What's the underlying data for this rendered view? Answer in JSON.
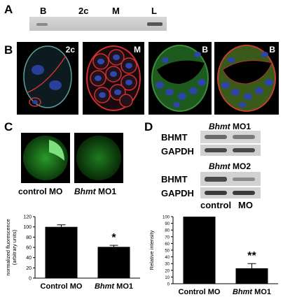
{
  "panelA": {
    "label": "A",
    "lanes": [
      "B",
      "2c",
      "M",
      "L"
    ]
  },
  "panelB": {
    "label": "B",
    "images": [
      {
        "tag": "2c",
        "stain": "red-membrane-blue-nuclei"
      },
      {
        "tag": "M",
        "stain": "red-membrane-blue-nuclei"
      },
      {
        "tag": "B",
        "stain": "green-cytoplasm-blue-nuclei"
      },
      {
        "tag": "B",
        "stain": "green-red-blue"
      }
    ]
  },
  "panelC": {
    "label": "C",
    "caption_control": "control MO",
    "caption_mo_italic": "Bhmt",
    "caption_mo_rest": " MO1"
  },
  "panelD": {
    "label": "D",
    "blot1": {
      "title_italic": "Bhmt",
      "title_rest": " MO1",
      "rows": [
        "BHMT",
        "GAPDH"
      ]
    },
    "blot2": {
      "title_italic": "Bhmt",
      "title_rest": " MO2",
      "rows": [
        "BHMT",
        "GAPDH"
      ]
    },
    "lane_labels": [
      "control",
      "MO"
    ]
  },
  "chart_data": [
    {
      "type": "bar",
      "panel": "C",
      "categories": [
        "Control MO",
        "Bhmt MO1"
      ],
      "values": [
        100,
        61
      ],
      "errors": [
        4,
        3
      ],
      "ylabel": "normalized fluorescence\n(arbitrary units)",
      "ylim": [
        0,
        120
      ],
      "yticks": [
        "0",
        "20",
        "40",
        "60",
        "80",
        "100",
        "120"
      ],
      "cat_labels": [
        {
          "plain": "Control MO"
        },
        {
          "italic": "Bhmt",
          "rest": " MO1"
        }
      ],
      "significance": [
        {
          "index": 1,
          "mark": "*"
        }
      ],
      "bar_color": "#000000"
    },
    {
      "type": "bar",
      "panel": "D",
      "categories": [
        "Control MO",
        "Bhmt MO1"
      ],
      "values": [
        100,
        23
      ],
      "errors": [
        0,
        7
      ],
      "ylabel": "Relative intensity",
      "ylim": [
        0,
        100
      ],
      "yticks": [
        "0",
        "10",
        "20",
        "30",
        "40",
        "50",
        "60",
        "70",
        "80",
        "90",
        "100"
      ],
      "cat_labels": [
        {
          "plain": "Control  MO"
        },
        {
          "italic": "Bhmt",
          "rest": " MO1"
        }
      ],
      "significance": [
        {
          "index": 1,
          "mark": "**"
        }
      ],
      "bar_color": "#000000"
    }
  ]
}
